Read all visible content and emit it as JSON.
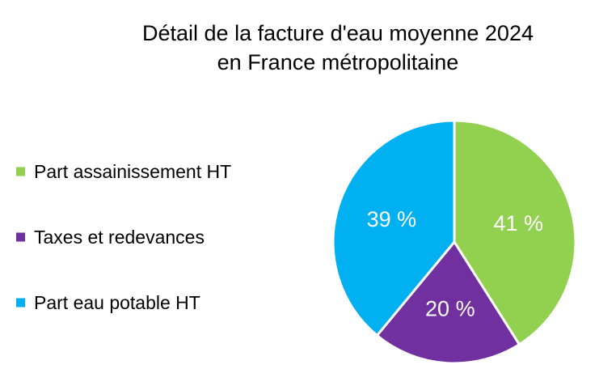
{
  "chart_data": {
    "type": "pie",
    "title": [
      "Détail de la facture d'eau moyenne 2024",
      "en France métropolitaine"
    ],
    "start": "12 o'clock",
    "direction": "clockwise",
    "legend_position": "left",
    "slices": [
      {
        "name": "Part assainissement HT",
        "value": 41,
        "label": "41 %",
        "color": "#92d050"
      },
      {
        "name": "Taxes et redevances",
        "value": 20,
        "label": "20 %",
        "color": "#7030a0"
      },
      {
        "name": "Part eau potable HT",
        "value": 39,
        "label": "39 %",
        "color": "#00b0f0"
      }
    ]
  }
}
